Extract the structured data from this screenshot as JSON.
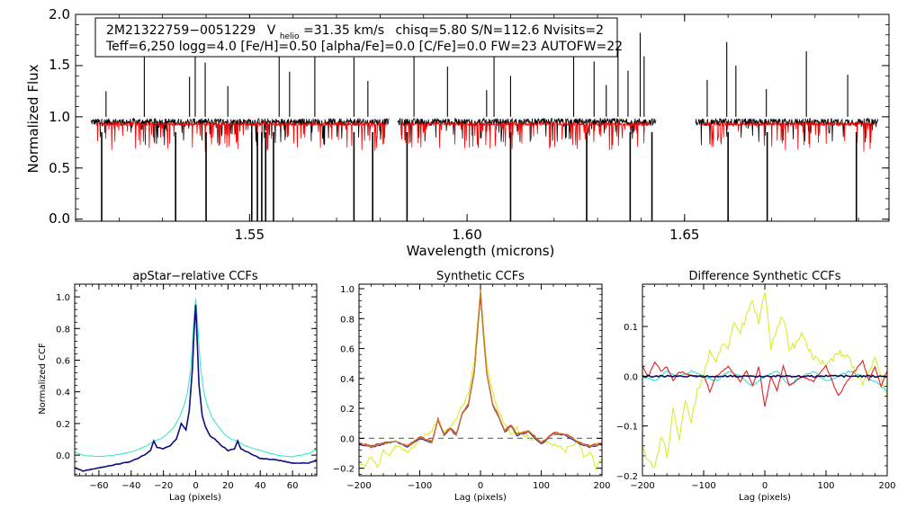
{
  "chart_data": [
    {
      "type": "line",
      "title": "",
      "xlabel": "Wavelength (microns)",
      "ylabel": "Normalized Flux",
      "xlim": [
        1.51,
        1.697
      ],
      "ylim": [
        -0.02,
        2.0
      ],
      "xticks": [
        1.55,
        1.6,
        1.65
      ],
      "xtick_labels": [
        "1.55",
        "1.60",
        "1.65"
      ],
      "yticks": [
        0.0,
        0.5,
        1.0,
        1.5,
        2.0
      ],
      "ytick_labels": [
        "0.0",
        "0.5",
        "1.0",
        "1.5",
        "2.0"
      ],
      "annotation": {
        "line1": {
          "id": "2M21322759−0051229",
          "v_label": "V",
          "v_sub": "helio",
          "v_value": "=31.35 km/s",
          "rest": "chisq=5.80  S/N=112.6  Nvisits=2"
        },
        "line2": "Teff=6,250 logg=4.0 [Fe/H]=0.50 [alpha/Fe]=0.0 [C/Fe]=0.0 FW=23 AUTOFW=22"
      },
      "series": [
        {
          "name": "observed spectrum",
          "color": "#000000",
          "segments": [
            [
              1.5135,
              1.582
            ],
            [
              1.584,
              1.6435
            ],
            [
              1.6525,
              1.6945
            ]
          ],
          "continuum": 0.95,
          "absorption_lines": [
            1.516,
            1.533,
            1.54,
            1.5505,
            1.5518,
            1.5528,
            1.5537,
            1.5555,
            1.574,
            1.5783,
            1.5862,
            1.61,
            1.6275,
            1.6375,
            1.6425,
            1.66,
            1.669,
            1.6895
          ],
          "emission_spikes": [
            1.517,
            1.5258,
            1.5362,
            1.5375,
            1.5398,
            1.545,
            1.5568,
            1.5592,
            1.565,
            1.574,
            1.5772,
            1.5878,
            1.5955,
            1.6045,
            1.6062,
            1.61,
            1.6245,
            1.6292,
            1.632,
            1.6347,
            1.637,
            1.6398,
            1.6407,
            1.6552,
            1.6597,
            1.6618,
            1.6688,
            1.678,
            1.6875
          ]
        },
        {
          "name": "model spectrum",
          "color": "#ff0000",
          "segments": [
            [
              1.5148,
              1.5815
            ],
            [
              1.5848,
              1.642
            ],
            [
              1.654,
              1.694
            ]
          ],
          "continuum": 0.93
        }
      ]
    },
    {
      "type": "line",
      "title": "apStar−relative CCFs",
      "xlabel": "Lag (pixels)",
      "ylabel": "Normalized CCF",
      "xlim": [
        -75,
        75
      ],
      "ylim": [
        -0.13,
        1.08
      ],
      "xticks": [
        -60,
        -40,
        -20,
        0,
        20,
        40,
        60
      ],
      "xtick_labels": [
        "−60",
        "−40",
        "−20",
        "0",
        "20",
        "40",
        "60"
      ],
      "yticks": [
        0.0,
        0.2,
        0.4,
        0.6,
        0.8,
        1.0
      ],
      "ytick_labels": [
        "0.0",
        "0.2",
        "0.4",
        "0.6",
        "0.8",
        "1.0"
      ],
      "series": [
        {
          "name": "visit 1",
          "color": "#3fe8c8",
          "x": [
            -75,
            -70,
            -60,
            -50,
            -40,
            -30,
            -26,
            -22,
            -18,
            -14,
            -10,
            -7,
            -5,
            -3,
            -2,
            -1,
            0,
            1,
            2,
            3,
            5,
            7,
            10,
            14,
            18,
            22,
            26,
            30,
            40,
            50,
            60,
            70,
            75
          ],
          "y": [
            0.02,
            0.0,
            -0.01,
            0.0,
            0.02,
            0.06,
            0.09,
            0.1,
            0.13,
            0.17,
            0.24,
            0.32,
            0.4,
            0.55,
            0.72,
            0.88,
            0.99,
            0.86,
            0.7,
            0.55,
            0.4,
            0.32,
            0.24,
            0.18,
            0.13,
            0.1,
            0.09,
            0.06,
            0.03,
            0.0,
            -0.01,
            0.01,
            0.04
          ]
        },
        {
          "name": "visit 2",
          "color": "#0d0d80",
          "x": [
            -75,
            -70,
            -60,
            -50,
            -40,
            -32,
            -28,
            -26,
            -24,
            -20,
            -16,
            -12,
            -9,
            -6,
            -4,
            -2,
            -1,
            0,
            1,
            2,
            4,
            6,
            9,
            12,
            16,
            20,
            24,
            26,
            28,
            32,
            40,
            50,
            60,
            70,
            75
          ],
          "y": [
            -0.08,
            -0.1,
            -0.08,
            -0.06,
            -0.04,
            0.0,
            0.03,
            0.09,
            0.05,
            0.04,
            0.06,
            0.1,
            0.2,
            0.16,
            0.28,
            0.55,
            0.78,
            0.95,
            0.7,
            0.45,
            0.25,
            0.18,
            0.12,
            0.1,
            0.06,
            0.03,
            0.04,
            0.09,
            0.04,
            0.02,
            -0.02,
            -0.03,
            -0.05,
            -0.05,
            -0.03
          ]
        }
      ]
    },
    {
      "type": "line",
      "title": "Synthetic CCFs",
      "xlabel": "Lag (pixels)",
      "ylabel": "",
      "xlim": [
        -200,
        200
      ],
      "ylim": [
        -0.25,
        1.03
      ],
      "xticks": [
        -200,
        -100,
        0,
        100,
        200
      ],
      "xtick_labels": [
        "−200",
        "−100",
        "0",
        "100",
        "200"
      ],
      "yticks": [
        -0.2,
        0.0,
        0.2,
        0.4,
        0.6,
        0.8,
        1.0
      ],
      "ytick_labels": [
        "−0.2",
        "0.0",
        "0.2",
        "0.4",
        "0.6",
        "0.8",
        "1.0"
      ],
      "reference_line": {
        "y": 0.0,
        "color": "#777777",
        "style": "dashed"
      },
      "series": [
        {
          "name": "yellow",
          "color": "#d8ee2a",
          "x": [
            -200,
            -190,
            -180,
            -170,
            -160,
            -150,
            -140,
            -120,
            -100,
            -80,
            -70,
            -60,
            -50,
            -40,
            -30,
            -20,
            -10,
            -5,
            0,
            5,
            10,
            20,
            30,
            40,
            50,
            60,
            80,
            100,
            120,
            140,
            160,
            170,
            180,
            190,
            200
          ],
          "y": [
            -0.16,
            -0.18,
            -0.12,
            -0.2,
            -0.08,
            -0.12,
            -0.04,
            -0.08,
            -0.02,
            0.06,
            0.12,
            0.04,
            0.08,
            0.14,
            0.22,
            0.3,
            0.52,
            0.76,
            0.98,
            0.74,
            0.5,
            0.3,
            0.18,
            0.1,
            0.02,
            0.06,
            0.0,
            -0.02,
            -0.04,
            -0.08,
            -0.02,
            -0.12,
            -0.08,
            -0.2,
            -0.14
          ]
        },
        {
          "name": "blue",
          "color": "#2020a0",
          "x": [
            -200,
            -180,
            -160,
            -140,
            -120,
            -100,
            -80,
            -70,
            -60,
            -50,
            -40,
            -30,
            -20,
            -10,
            -5,
            0,
            5,
            10,
            20,
            30,
            40,
            50,
            60,
            80,
            100,
            120,
            140,
            160,
            180,
            200
          ],
          "y": [
            -0.04,
            -0.06,
            -0.04,
            -0.02,
            -0.06,
            0.0,
            -0.03,
            0.12,
            0.02,
            0.06,
            0.02,
            0.16,
            0.22,
            0.45,
            0.7,
            0.96,
            0.68,
            0.44,
            0.22,
            0.14,
            0.04,
            0.08,
            0.02,
            0.04,
            -0.04,
            0.03,
            0.02,
            -0.03,
            -0.06,
            -0.04
          ]
        },
        {
          "name": "red",
          "color": "#e02020",
          "x": [
            -200,
            -180,
            -160,
            -140,
            -120,
            -100,
            -80,
            -70,
            -60,
            -50,
            -40,
            -30,
            -20,
            -10,
            -5,
            0,
            5,
            10,
            20,
            30,
            40,
            50,
            60,
            80,
            100,
            120,
            140,
            160,
            180,
            200
          ],
          "y": [
            -0.03,
            -0.05,
            -0.03,
            -0.02,
            -0.05,
            0.01,
            -0.02,
            0.13,
            0.03,
            0.07,
            0.03,
            0.17,
            0.23,
            0.46,
            0.72,
            0.97,
            0.7,
            0.45,
            0.23,
            0.15,
            0.05,
            0.09,
            0.03,
            0.05,
            -0.03,
            0.04,
            0.03,
            -0.02,
            -0.05,
            -0.03
          ]
        },
        {
          "name": "orange",
          "color": "#d08020",
          "x": [
            -200,
            -180,
            -160,
            -140,
            -120,
            -100,
            -80,
            -70,
            -60,
            -50,
            -40,
            -30,
            -20,
            -10,
            -5,
            0,
            5,
            10,
            20,
            30,
            40,
            50,
            60,
            80,
            100,
            120,
            140,
            160,
            180,
            200
          ],
          "y": [
            -0.035,
            -0.055,
            -0.035,
            -0.02,
            -0.055,
            0.005,
            -0.025,
            0.125,
            0.025,
            0.065,
            0.025,
            0.165,
            0.225,
            0.455,
            0.71,
            1.0,
            0.69,
            0.445,
            0.225,
            0.145,
            0.045,
            0.085,
            0.025,
            0.045,
            -0.035,
            0.035,
            0.025,
            -0.025,
            -0.055,
            -0.035
          ]
        }
      ]
    },
    {
      "type": "line",
      "title": "Difference Synthetic CCFs",
      "xlabel": "Lag (pixels)",
      "ylabel": "",
      "xlim": [
        -200,
        200
      ],
      "ylim": [
        -0.2,
        0.185
      ],
      "xticks": [
        -200,
        -100,
        0,
        100,
        200
      ],
      "xtick_labels": [
        "−200",
        "−100",
        "0",
        "100",
        "200"
      ],
      "yticks": [
        -0.2,
        -0.1,
        0.0,
        0.1
      ],
      "ytick_labels": [
        "−0.2",
        "−0.1",
        "0.0",
        "0.1"
      ],
      "series": [
        {
          "name": "yellow",
          "color": "#d8ee2a",
          "x": [
            -200,
            -190,
            -180,
            -170,
            -160,
            -150,
            -140,
            -130,
            -120,
            -110,
            -100,
            -90,
            -80,
            -70,
            -60,
            -50,
            -40,
            -30,
            -20,
            -10,
            0,
            10,
            20,
            30,
            40,
            60,
            80,
            100,
            120,
            140,
            160,
            180,
            200
          ],
          "y": [
            -0.15,
            -0.17,
            -0.19,
            -0.12,
            -0.16,
            -0.07,
            -0.13,
            -0.05,
            -0.09,
            -0.03,
            0.0,
            0.05,
            0.03,
            0.07,
            0.05,
            0.11,
            0.09,
            0.12,
            0.15,
            0.11,
            0.17,
            0.06,
            0.1,
            0.12,
            0.05,
            0.08,
            0.04,
            0.02,
            0.05,
            0.03,
            -0.02,
            0.04,
            -0.04
          ]
        },
        {
          "name": "cyan",
          "color": "#30e0e0",
          "x": [
            -200,
            -180,
            -160,
            -140,
            -120,
            -100,
            -80,
            -60,
            -40,
            -20,
            0,
            20,
            40,
            60,
            80,
            100,
            120,
            140,
            160,
            180,
            200
          ],
          "y": [
            0.0,
            -0.01,
            0.01,
            0.0,
            0.01,
            0.0,
            -0.01,
            0.01,
            0.0,
            -0.02,
            0.0,
            0.01,
            -0.02,
            0.0,
            0.01,
            -0.01,
            0.0,
            0.01,
            0.0,
            -0.01,
            -0.03
          ]
        },
        {
          "name": "red",
          "color": "#e02020",
          "x": [
            -200,
            -190,
            -180,
            -170,
            -160,
            -150,
            -140,
            -120,
            -100,
            -90,
            -80,
            -60,
            -40,
            -30,
            -20,
            -10,
            0,
            10,
            20,
            30,
            40,
            60,
            80,
            100,
            110,
            120,
            140,
            160,
            170,
            180,
            190,
            200
          ],
          "y": [
            0.02,
            0.0,
            0.03,
            0.01,
            0.02,
            -0.01,
            0.01,
            0.0,
            0.0,
            -0.03,
            0.0,
            0.02,
            -0.01,
            0.01,
            -0.02,
            0.02,
            -0.06,
            0.0,
            -0.03,
            0.02,
            -0.02,
            0.0,
            -0.01,
            0.02,
            -0.01,
            -0.04,
            0.0,
            0.03,
            -0.01,
            0.02,
            -0.02,
            0.01
          ]
        },
        {
          "name": "navy",
          "color": "#101050",
          "x": [
            -200,
            200
          ],
          "y": [
            0.0,
            0.0
          ]
        }
      ]
    }
  ]
}
